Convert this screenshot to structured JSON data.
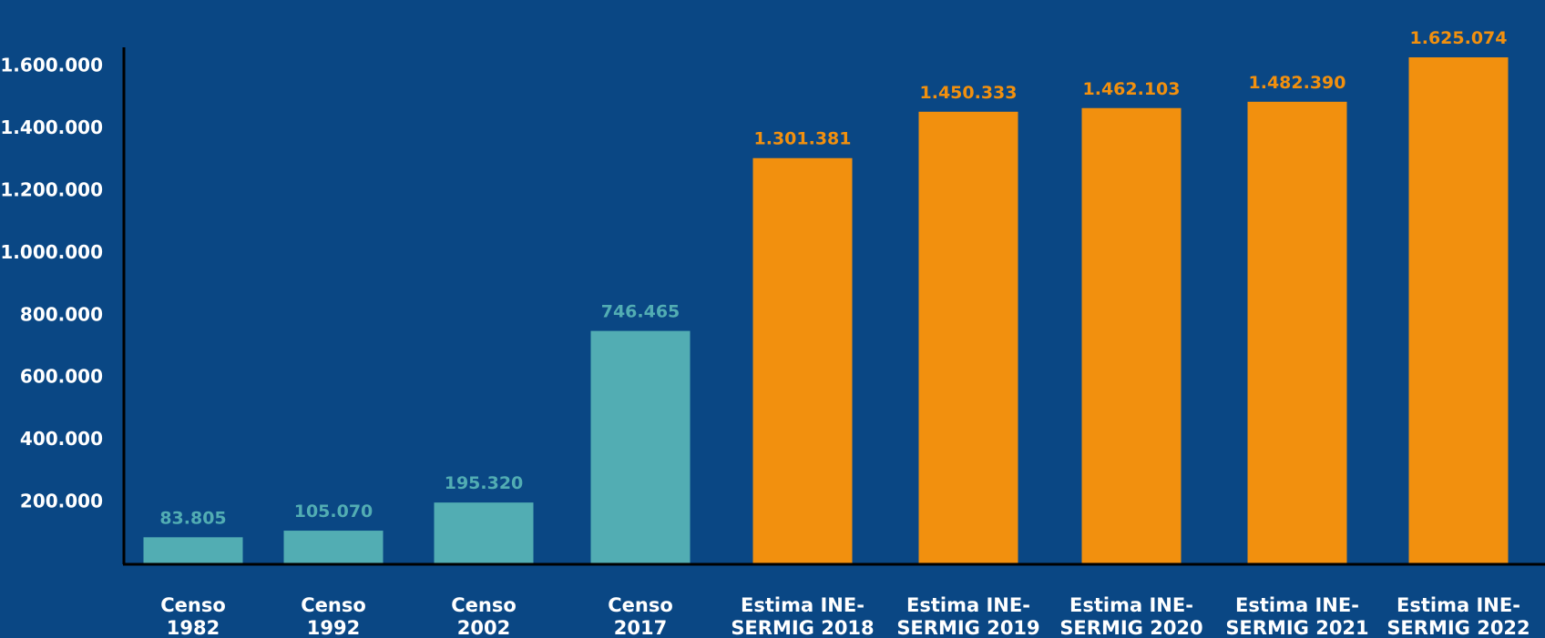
{
  "colors": {
    "background": "#0a4784",
    "censo": "#52adb3",
    "estima": "#f2900e",
    "axis": "#000000",
    "text": "#ffffff"
  },
  "chart_data": {
    "type": "bar",
    "title": "",
    "xlabel": "",
    "ylabel": "",
    "ylim": [
      0,
      1800000
    ],
    "grid": false,
    "yticks": [
      "200.000",
      "400.000",
      "600.000",
      "800.000",
      "1.000.000",
      "1.200.000",
      "1.400.000",
      "1.600.000"
    ],
    "categories": [
      [
        "Censo",
        "1982"
      ],
      [
        "Censo",
        "1992"
      ],
      [
        "Censo",
        "2002"
      ],
      [
        "Censo",
        "2017"
      ],
      [
        "Estima INE-",
        "SERMIG 2018"
      ],
      [
        "Estima INE-",
        "SERMIG 2019"
      ],
      [
        "Estima INE-",
        "SERMIG 2020"
      ],
      [
        "Estima INE-",
        "SERMIG 2021"
      ],
      [
        "Estima INE-",
        "SERMIG 2022"
      ]
    ],
    "values": [
      83805,
      105070,
      195320,
      746465,
      1301381,
      1450333,
      1462103,
      1482390,
      1625074
    ],
    "value_labels": [
      "83.805",
      "105.070",
      "195.320",
      "746.465",
      "1.301.381",
      "1.450.333",
      "1.462.103",
      "1.482.390",
      "1.625.074"
    ],
    "bar_groups": [
      "censo",
      "censo",
      "censo",
      "censo",
      "estima",
      "estima",
      "estima",
      "estima",
      "estima"
    ]
  }
}
